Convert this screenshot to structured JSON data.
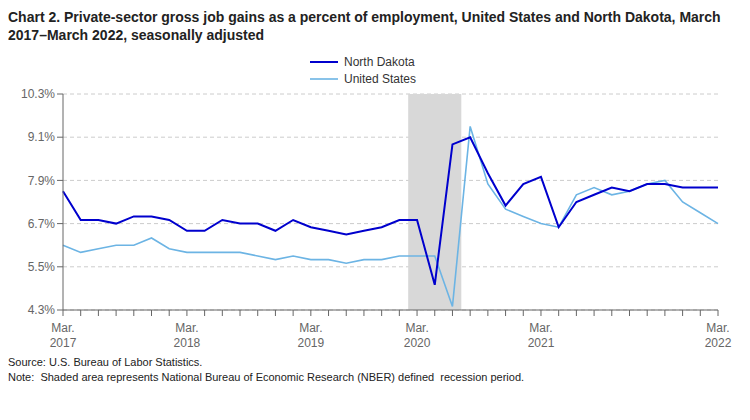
{
  "chart_data": {
    "type": "line",
    "title": "Chart 2. Private-sector gross job gains as a percent of employment, United States and North Dakota, March 2017–March 2022, seasonally adjusted",
    "source": "Source: U.S. Bureau of Labor Statistics.",
    "note": "Note:  Shaded area represents National Bureau of Economic Research (NBER) defined  recession period.",
    "categories": [
      "Mar.\n2017",
      null,
      null,
      null,
      null,
      null,
      null,
      "Mar.\n2018",
      null,
      null,
      null,
      null,
      null,
      null,
      "Mar.\n2019",
      null,
      null,
      null,
      null,
      null,
      "Mar.\n2020",
      null,
      null,
      null,
      null,
      null,
      null,
      "Mar.\n2021",
      null,
      null,
      null,
      null,
      null,
      null,
      null,
      null,
      null,
      "Mar.\n2022"
    ],
    "series": [
      {
        "name": "North Dakota",
        "color": "#0000CD",
        "values": [
          7.6,
          6.8,
          6.8,
          6.7,
          6.9,
          6.9,
          6.8,
          6.5,
          6.5,
          6.8,
          6.7,
          6.7,
          6.5,
          6.8,
          6.6,
          6.5,
          6.4,
          6.5,
          6.6,
          6.8,
          6.8,
          5.0,
          8.9,
          9.1,
          8.1,
          7.2,
          7.8,
          8.0,
          6.6,
          7.3,
          7.5,
          7.7,
          7.6,
          7.8,
          7.8,
          7.7,
          7.7,
          7.7
        ]
      },
      {
        "name": "United States",
        "color": "#6CB4E4",
        "values": [
          6.1,
          5.9,
          6.0,
          6.1,
          6.1,
          6.3,
          6.0,
          5.9,
          5.9,
          5.9,
          5.9,
          5.8,
          5.7,
          5.8,
          5.7,
          5.7,
          5.6,
          5.7,
          5.7,
          5.8,
          5.8,
          5.8,
          4.4,
          9.4,
          7.8,
          7.1,
          6.9,
          6.7,
          6.6,
          7.5,
          7.7,
          7.5,
          7.6,
          7.8,
          7.9,
          7.3,
          7.0,
          6.7
        ]
      }
    ],
    "ylim": [
      4.3,
      10.3
    ],
    "yticks": [
      {
        "value": 4.3,
        "label": "4.3%"
      },
      {
        "value": 5.5,
        "label": "5.5%"
      },
      {
        "value": 6.7,
        "label": "6.7%"
      },
      {
        "value": 7.9,
        "label": "7.9%"
      },
      {
        "value": 9.1,
        "label": "9.1%"
      },
      {
        "value": 10.3,
        "label": "10.3%"
      }
    ],
    "grid": true,
    "legend": "top",
    "shaded_period": {
      "start": 19.5,
      "end": 22.5,
      "color": "#D8D8D8"
    }
  }
}
